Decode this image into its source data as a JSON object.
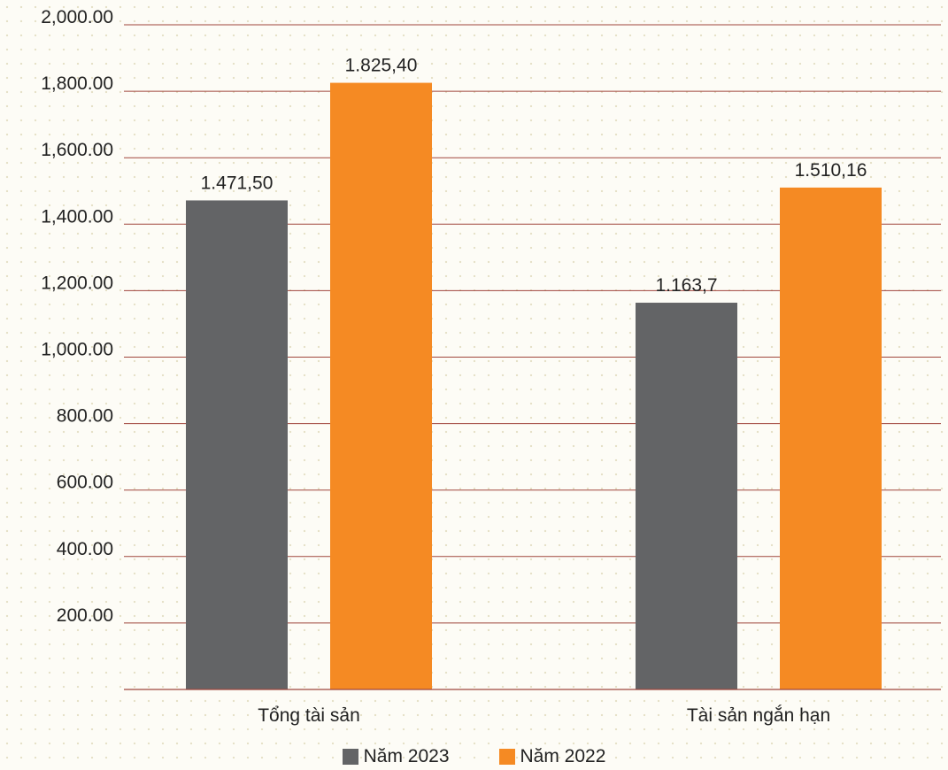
{
  "chart_data": {
    "type": "bar",
    "categories": [
      "Tổng tài sản",
      "Tài sản ngắn hạn"
    ],
    "series": [
      {
        "name": "Năm 2023",
        "color": "#636466",
        "values": [
          1471.5,
          1163.7
        ],
        "labels": [
          "1.471,50",
          "1.163,7"
        ]
      },
      {
        "name": "Năm 2022",
        "color": "#f58a23",
        "values": [
          1825.4,
          1510.16
        ],
        "labels": [
          "1.825,40",
          "1.510,16"
        ]
      }
    ],
    "yticks": [
      {
        "value": 200,
        "label": "200.00"
      },
      {
        "value": 400,
        "label": "400.00"
      },
      {
        "value": 600,
        "label": "600.00"
      },
      {
        "value": 800,
        "label": "800.00"
      },
      {
        "value": 1000,
        "label": "1,000.00"
      },
      {
        "value": 1200,
        "label": "1,200.00"
      },
      {
        "value": 1400,
        "label": "1,400.00"
      },
      {
        "value": 1600,
        "label": "1,600.00"
      },
      {
        "value": 1800,
        "label": "1,800.00"
      },
      {
        "value": 2000,
        "label": "2,000.00"
      }
    ],
    "ylim": [
      0,
      2000
    ],
    "grid": true,
    "grid_color": "#a0463c",
    "legend_position": "bottom"
  }
}
